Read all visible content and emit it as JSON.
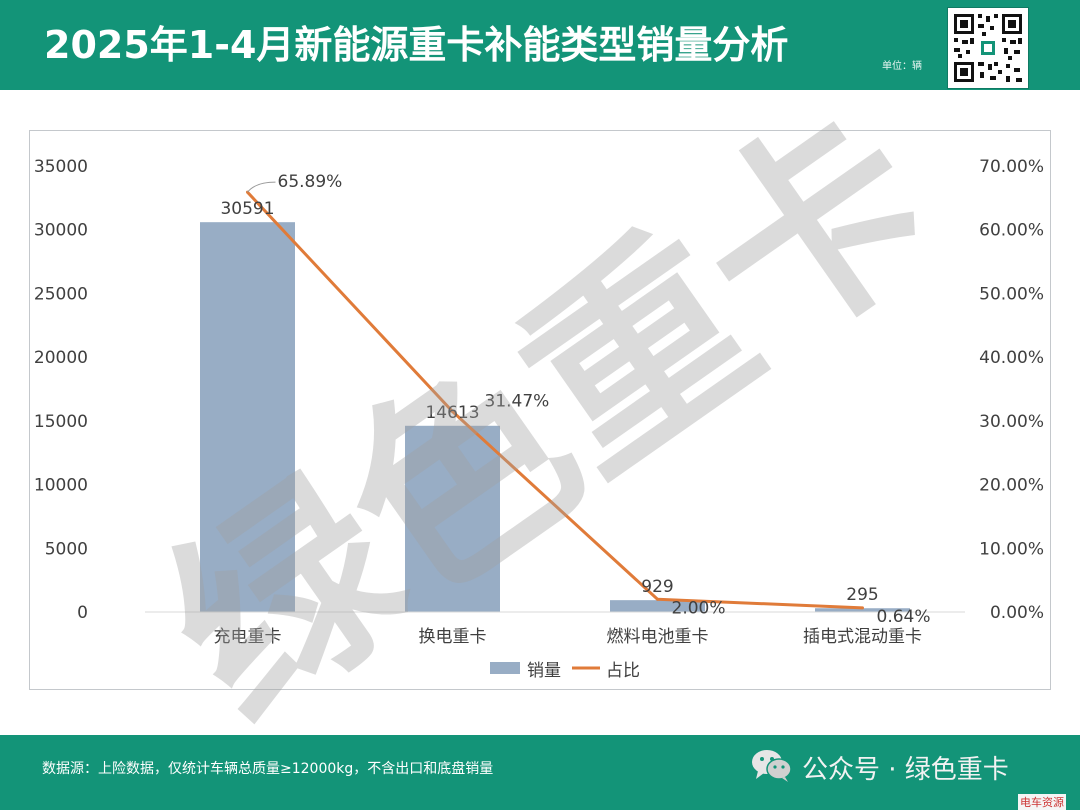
{
  "header": {
    "title": "2025年1-4月新能源重卡补能类型销量分析",
    "unit": "单位：辆"
  },
  "watermark": "绿色重卡",
  "footer": {
    "source": "数据源：上险数据，仅统计车辆总质量≥12000kg，不含出口和底盘销量",
    "wechat_label": "公众号 · 绿色重卡",
    "corner_tag": "电车资源"
  },
  "colors": {
    "header_bg": "#139478",
    "bar": "#98adc5",
    "line": "#e07b39"
  },
  "chart_data": {
    "type": "bar",
    "categories": [
      "充电重卡",
      "换电重卡",
      "燃料电池重卡",
      "插电式混动重卡"
    ],
    "series": [
      {
        "name": "销量",
        "type": "bar",
        "axis": "left",
        "values": [
          30591,
          14613,
          929,
          295
        ],
        "labels": [
          "30591",
          "14613",
          "929",
          "295"
        ]
      },
      {
        "name": "占比",
        "type": "line",
        "axis": "right",
        "values": [
          65.89,
          31.47,
          2.0,
          0.64
        ],
        "labels": [
          "65.89%",
          "31.47%",
          "2.00%",
          "0.64%"
        ]
      }
    ],
    "y_left": {
      "min": 0,
      "max": 35000,
      "ticks": [
        "0",
        "5000",
        "10000",
        "15000",
        "20000",
        "25000",
        "30000",
        "35000"
      ]
    },
    "y_right": {
      "min": 0,
      "max": 70,
      "ticks": [
        "0.00%",
        "10.00%",
        "20.00%",
        "30.00%",
        "40.00%",
        "50.00%",
        "60.00%",
        "70.00%"
      ]
    },
    "legend_position": "bottom",
    "grid": false
  }
}
